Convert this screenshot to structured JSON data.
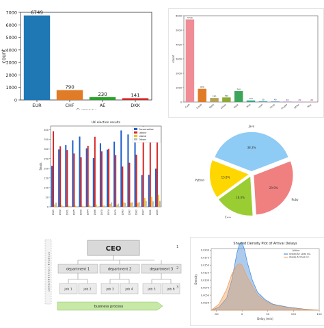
{
  "charts": [
    {
      "type": "bar",
      "categories": [
        "EUR",
        "CHF",
        "AE",
        "DKK"
      ],
      "values": [
        6749,
        790,
        230,
        141
      ],
      "colors": [
        "#1f77b4",
        "#e07b27",
        "#2ca02c",
        "#d62728"
      ],
      "ylabel": "count",
      "xlabel": "Currency",
      "ylim": [
        0,
        7000
      ],
      "yticks": [
        0,
        1000,
        2000,
        3000,
        4000,
        5000,
        6000,
        7000
      ],
      "data_labels": [
        "6749",
        "790",
        "230",
        "141"
      ]
    },
    {
      "type": "bar",
      "categories": [
        "Cash",
        "Credit",
        "Debit",
        "Check",
        "Bank",
        "Wire",
        "Loan",
        "Stock",
        "Crypto",
        "Other",
        "Misc"
      ],
      "values": [
        5740,
        920,
        280,
        320,
        760,
        110,
        50,
        40,
        30,
        25,
        20
      ],
      "colors": [
        "#f08c96",
        "#e07b27",
        "#b5a25a",
        "#8eaa35",
        "#3da55a",
        "#35a88e",
        "#3aa0b5",
        "#5a8fd6",
        "#9a7fd8",
        "#d574c8",
        "#e87aa0"
      ],
      "ylim": [
        0,
        6000
      ],
      "yticks": [
        0,
        1000,
        2000,
        3000,
        4000,
        5000,
        6000
      ],
      "ylabel": "count"
    },
    {
      "type": "bar",
      "title": "UK election results",
      "legend": [
        "Conservative",
        "Labour",
        "Liberal",
        "Others"
      ],
      "legend_placement": "top-right",
      "categories": [
        "1945",
        "1950",
        "1951",
        "1955",
        "1959",
        "1964",
        "1966",
        "1970",
        "1974",
        "1979",
        "1983",
        "1987",
        "1992",
        "1997",
        "2001",
        "2005"
      ],
      "series": [
        {
          "name": "Conservative",
          "color": "#1f5fc9",
          "values": [
            213,
            298,
            321,
            345,
            365,
            304,
            253,
            330,
            297,
            339,
            397,
            376,
            336,
            165,
            166,
            198
          ]
        },
        {
          "name": "Labour",
          "color": "#d62728",
          "values": [
            393,
            315,
            295,
            277,
            258,
            317,
            364,
            288,
            301,
            269,
            209,
            229,
            271,
            418,
            413,
            356
          ]
        },
        {
          "name": "Liberal",
          "color": "#f2c12e",
          "values": [
            12,
            9,
            6,
            6,
            6,
            9,
            12,
            6,
            14,
            11,
            23,
            22,
            20,
            46,
            52,
            62
          ]
        },
        {
          "name": "Others",
          "color": "#bbbbbb",
          "values": [
            22,
            3,
            3,
            2,
            1,
            0,
            1,
            6,
            23,
            16,
            21,
            23,
            24,
            30,
            28,
            30
          ]
        }
      ],
      "ylabel": "Seats",
      "ylim": [
        0,
        420
      ],
      "yticks": [
        0,
        50,
        100,
        150,
        200,
        250,
        300,
        350,
        400
      ]
    },
    {
      "type": "pie",
      "slices": [
        {
          "label": "Java",
          "value": 38.3,
          "color": "#8ecbf5",
          "pct": "38.3%"
        },
        {
          "label": "Ruby",
          "value": 29.9,
          "color": "#f08080",
          "pct": "29.9%"
        },
        {
          "label": "C++",
          "value": 16.0,
          "color": "#9acd32",
          "pct": "16.0%"
        },
        {
          "label": "Python",
          "value": 15.8,
          "color": "#ffd700",
          "pct": "15.8%"
        }
      ]
    },
    {
      "type": "diagram",
      "ceo": "CEO",
      "departments": [
        "department 1",
        "department 2",
        "department 3"
      ],
      "jobs": [
        "job 1",
        "job 2",
        "job 3",
        "job 4",
        "job 5",
        "job 6"
      ],
      "process": "business process",
      "vertical_label": "S t r a t e g i c   m a n a g e m e n t",
      "right_labels": [
        "1",
        "2",
        "3"
      ]
    },
    {
      "type": "area",
      "title": "Shaded Density Plot of Arrival Delays",
      "xlabel": "Delay (min)",
      "ylabel": "Density",
      "legend_title": "Airline",
      "legend": [
        "United Air Lines Inc.",
        "Alaska Airlines Inc."
      ],
      "x": [
        -60,
        -45,
        -30,
        -20,
        -10,
        -5,
        0,
        5,
        10,
        20,
        30,
        45,
        60,
        90,
        120,
        150
      ],
      "series": [
        {
          "name": "United Air Lines Inc.",
          "color": "#4a8fd8",
          "values": [
            0,
            0.001,
            0.004,
            0.01,
            0.019,
            0.022,
            0.0225,
            0.02,
            0.016,
            0.01,
            0.006,
            0.0035,
            0.002,
            0.001,
            0.0004,
            0
          ]
        },
        {
          "name": "Alaska Airlines Inc.",
          "color": "#f0a060",
          "values": [
            0,
            0.002,
            0.007,
            0.012,
            0.015,
            0.0155,
            0.015,
            0.013,
            0.011,
            0.008,
            0.005,
            0.003,
            0.0018,
            0.0008,
            0.0003,
            0
          ]
        }
      ],
      "xlim": [
        -60,
        150
      ],
      "xticks": [
        -50,
        0,
        50,
        100,
        150
      ],
      "ylim": [
        0,
        0.0205
      ],
      "yticks": [
        0.0025,
        0.005,
        0.0075,
        0.01,
        0.0125,
        0.015,
        0.0175,
        0.02
      ],
      "ytick_labels": [
        "0.0025",
        "0.0050",
        "0.0075",
        "0.0100",
        "0.0125",
        "0.0150",
        "0.0175",
        "0.0200"
      ]
    }
  ]
}
